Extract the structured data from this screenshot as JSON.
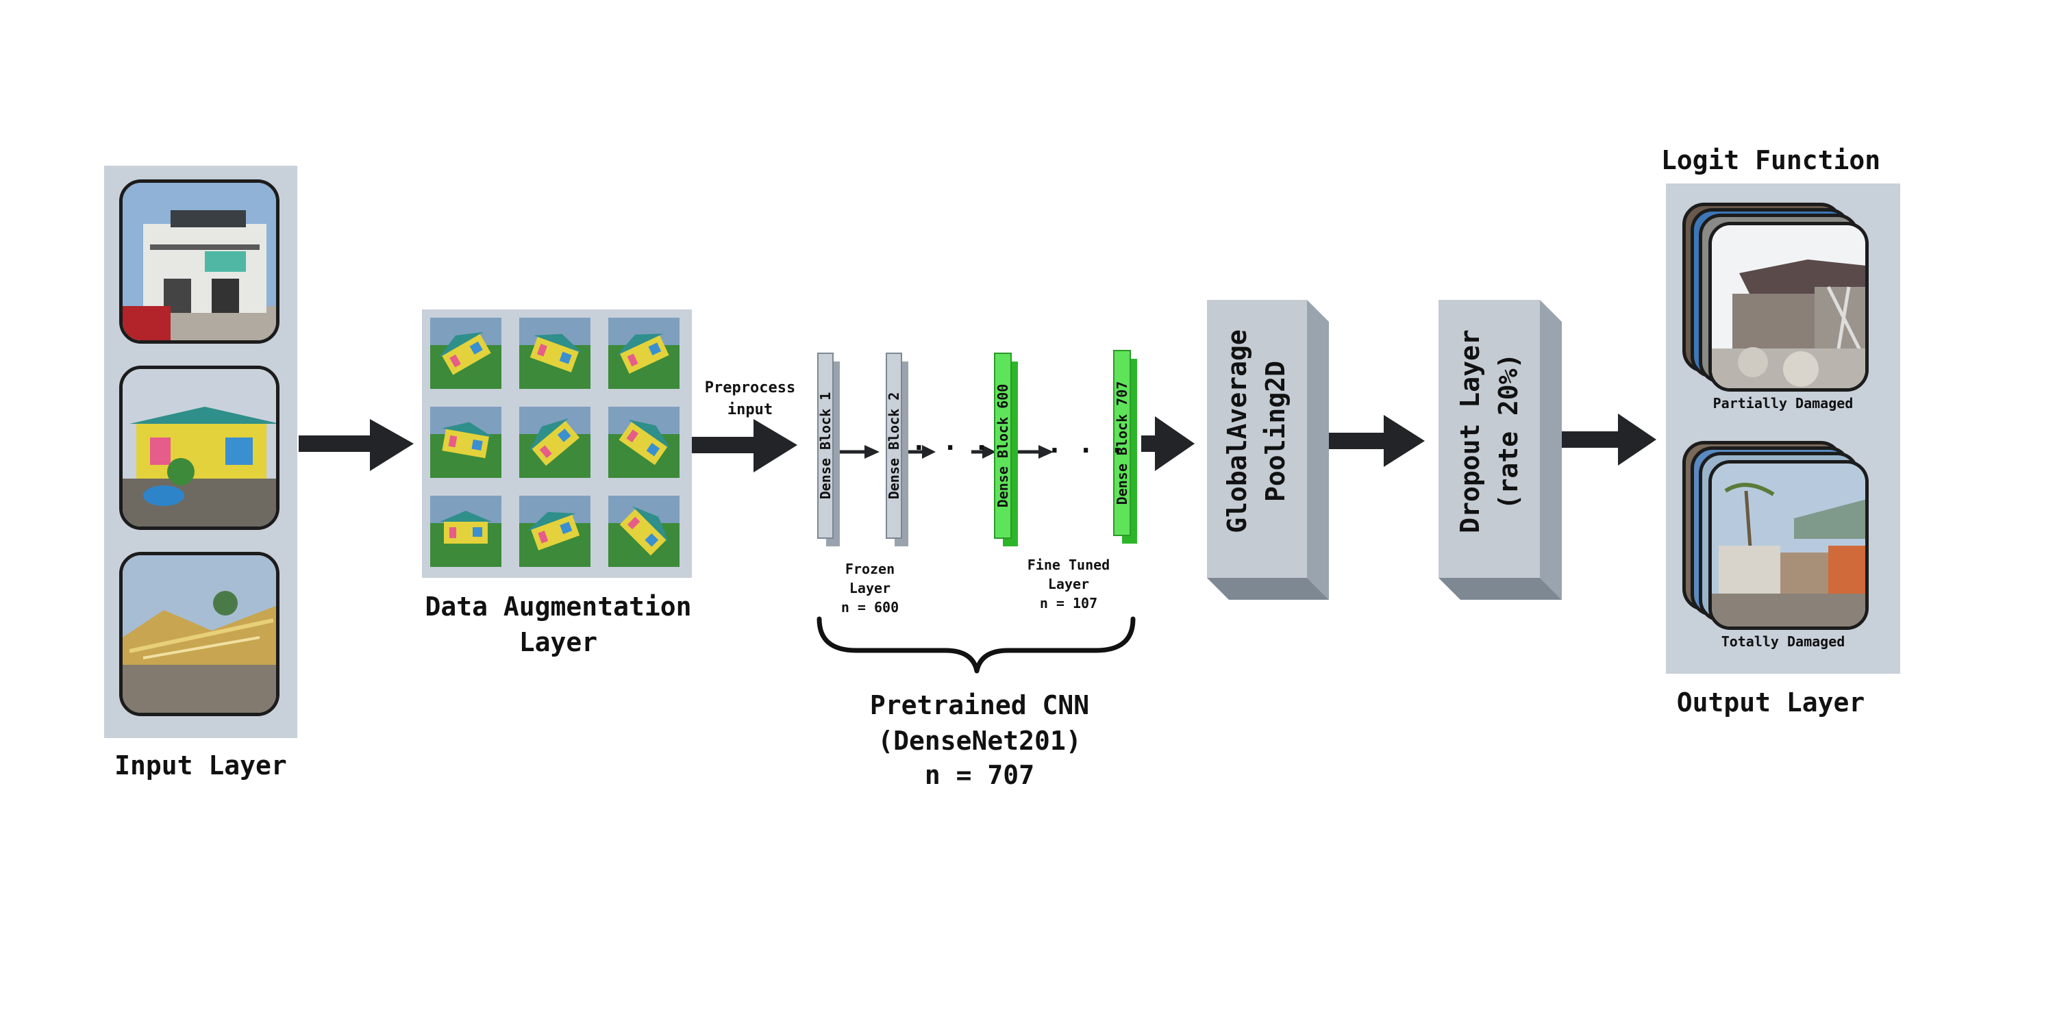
{
  "input_layer": {
    "label": "Input Layer",
    "images": [
      "concrete-building-photo",
      "yellow-house-photo",
      "collapsed-roof-photo"
    ]
  },
  "augmentation": {
    "label_line1": "Data Augmentation",
    "label_line2": "Layer",
    "thumb_count": 9
  },
  "preprocess": {
    "line1": "Preprocess",
    "line2": "input"
  },
  "blocks": {
    "block1": "Dense Block 1",
    "block2": "Dense Block 2",
    "block600": "Dense Block 600",
    "block707": "Dense Block 707",
    "dots": ". . ."
  },
  "frozen": {
    "line1": "Frozen",
    "line2": "Layer",
    "line3": "n = 600"
  },
  "fine_tuned": {
    "line1": "Fine Tuned",
    "line2": "Layer",
    "line3": "n = 107"
  },
  "pretrained": {
    "line1": "Pretrained CNN",
    "line2": "(DenseNet201)",
    "line3": "n = 707"
  },
  "pooling": {
    "line1": "GlobalAverage",
    "line2": "Pooling2D"
  },
  "dropout": {
    "line1": "Dropout Layer",
    "line2": "(rate 20%)"
  },
  "output": {
    "top_label": "Logit Function",
    "bottom_label": "Output Layer",
    "class1": "Partially Damaged",
    "class2": "Totally Damaged"
  },
  "colors": {
    "panel": "#c8d0da",
    "arrow": "#222428",
    "frozen_block": "#c9d0d8",
    "tuned_block": "#5fe35a",
    "box_front": "#c4cbd3",
    "box_side": "#9aa4ae"
  }
}
